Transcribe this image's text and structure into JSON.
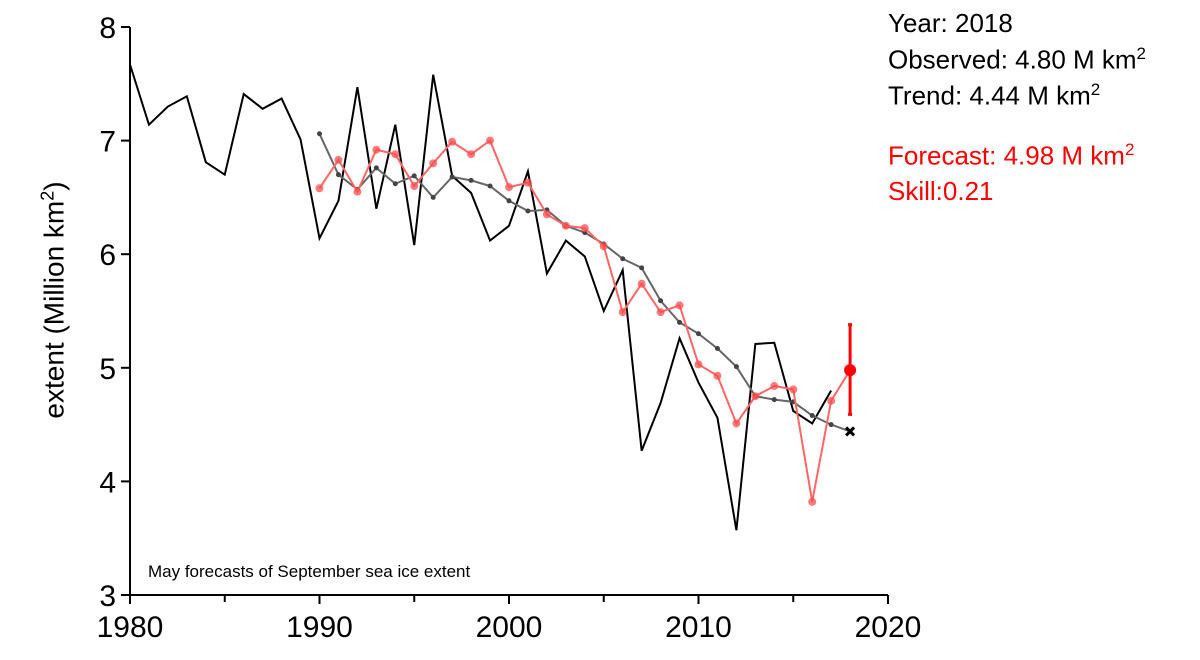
{
  "chart_data": {
    "type": "line",
    "caption": "May forecasts of September sea ice extent",
    "ylabel_prefix": "extent (Million km",
    "ylabel_sup": "2",
    "ylabel_suffix": ")",
    "xlim": [
      1980,
      2020
    ],
    "ylim": [
      3,
      8
    ],
    "x_ticks": [
      1980,
      1990,
      2000,
      2010,
      2020
    ],
    "y_ticks": [
      3,
      4,
      5,
      6,
      7,
      8
    ],
    "colors": {
      "observed": "#000000",
      "trend": "#666666",
      "forecast": "#ff6666",
      "forecast_point": "#ff0000"
    },
    "series": [
      {
        "x": [
          1980,
          1981,
          1982,
          1983,
          1984,
          1985,
          1986,
          1987,
          1988,
          1989,
          1990,
          1991,
          1992,
          1993,
          1994,
          1995,
          1996,
          1997,
          1998,
          1999,
          2000,
          2001,
          2002,
          2003,
          2004,
          2005,
          2006,
          2007,
          2008,
          2009,
          2010,
          2011,
          2012,
          2013,
          2014,
          2015,
          2016,
          2017
        ],
        "values": [
          7.67,
          7.14,
          7.3,
          7.39,
          6.81,
          6.7,
          7.41,
          7.28,
          7.37,
          7.01,
          6.14,
          6.47,
          7.47,
          6.4,
          7.14,
          6.08,
          7.58,
          6.69,
          6.54,
          6.12,
          6.25,
          6.73,
          5.83,
          6.12,
          5.98,
          5.5,
          5.86,
          4.27,
          4.69,
          5.26,
          4.87,
          4.56,
          3.57,
          5.21,
          5.22,
          4.62,
          4.51,
          4.8
        ]
      },
      {
        "x": [
          1990,
          1991,
          1992,
          1993,
          1994,
          1995,
          1996,
          1997,
          1998,
          1999,
          2000,
          2001,
          2002,
          2003,
          2004,
          2005,
          2006,
          2007,
          2008,
          2009,
          2010,
          2011,
          2012,
          2013,
          2014,
          2015,
          2016,
          2017,
          2018
        ],
        "values": [
          7.06,
          6.7,
          6.57,
          6.76,
          6.62,
          6.69,
          6.5,
          6.68,
          6.65,
          6.6,
          6.47,
          6.38,
          6.39,
          6.25,
          6.19,
          6.09,
          5.96,
          5.88,
          5.59,
          5.4,
          5.3,
          5.17,
          5.01,
          4.75,
          4.72,
          4.7,
          4.58,
          4.5,
          4.44
        ]
      },
      {
        "x": [
          1990,
          1991,
          1992,
          1993,
          1994,
          1995,
          1996,
          1997,
          1998,
          1999,
          2000,
          2001,
          2002,
          2003,
          2004,
          2005,
          2006,
          2007,
          2008,
          2009,
          2010,
          2011,
          2012,
          2013,
          2014,
          2015,
          2016,
          2017,
          2018
        ],
        "values": [
          6.58,
          6.83,
          6.55,
          6.92,
          6.88,
          6.6,
          6.8,
          6.99,
          6.88,
          7.0,
          6.59,
          6.63,
          6.35,
          6.25,
          6.23,
          6.07,
          5.49,
          5.74,
          5.49,
          5.55,
          5.03,
          4.93,
          4.51,
          4.75,
          4.84,
          4.81,
          3.82,
          4.71,
          4.98
        ]
      }
    ],
    "forecast_2018": {
      "x": 2018,
      "value": 4.98,
      "low": 4.59,
      "high": 5.38
    },
    "trend_2018_marker": {
      "x": 2018,
      "value": 4.44
    }
  },
  "annotations": {
    "year": "Year: 2018",
    "observed_prefix": "Observed: 4.80 M km",
    "trend_prefix": "Trend: 4.44 M km",
    "forecast_prefix": "Forecast: 4.98 M km",
    "sup": "2",
    "skill": "Skill:0.21"
  }
}
